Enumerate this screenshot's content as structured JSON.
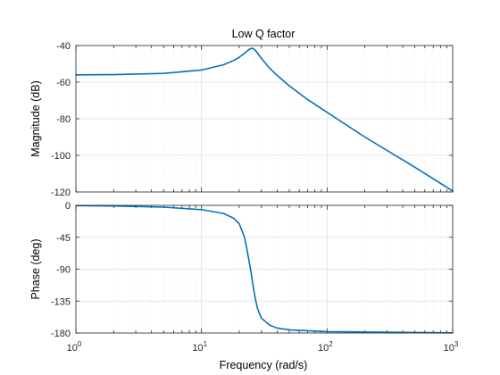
{
  "figure": {
    "title": "Low Q factor",
    "xlabel": "Frequency  (rad/s)"
  },
  "colors": {
    "line": "#0072BD",
    "axis": "#262626",
    "grid": "#dfdfdf",
    "minor_grid": "#e8e8e8",
    "background": "#ffffff"
  },
  "chart_data": [
    {
      "type": "line",
      "name": "magnitude",
      "title": "Low Q factor",
      "ylabel": "Magnitude (dB)",
      "xscale": "log",
      "xlim": [
        1,
        1000
      ],
      "ylim": [
        -120,
        -40
      ],
      "yticks": [
        -120,
        -100,
        -80,
        -60,
        -40
      ],
      "grid": true,
      "points": [
        [
          1,
          -56.0
        ],
        [
          2,
          -55.9
        ],
        [
          5,
          -55.2
        ],
        [
          10,
          -53.4
        ],
        [
          15,
          -50.5
        ],
        [
          18,
          -48.2
        ],
        [
          20,
          -46.4
        ],
        [
          22,
          -44.2
        ],
        [
          24,
          -42.1
        ],
        [
          25.5,
          -41.4
        ],
        [
          27,
          -42.8
        ],
        [
          30,
          -47.0
        ],
        [
          35,
          -52.5
        ],
        [
          40,
          -56.3
        ],
        [
          50,
          -62.0
        ],
        [
          70,
          -69.5
        ],
        [
          100,
          -76.5
        ],
        [
          200,
          -90.0
        ],
        [
          500,
          -106.5
        ],
        [
          1000,
          -119.5
        ]
      ]
    },
    {
      "type": "line",
      "name": "phase",
      "xlabel": "Frequency  (rad/s)",
      "ylabel": "Phase (deg)",
      "xscale": "log",
      "xlim": [
        1,
        1000
      ],
      "ylim": [
        -180,
        0
      ],
      "yticks": [
        -180,
        -135,
        -90,
        -45,
        0
      ],
      "xticks": [
        1,
        10,
        100,
        1000
      ],
      "xtick_labels": [
        {
          "base": "10",
          "exp": "0"
        },
        {
          "base": "10",
          "exp": "1"
        },
        {
          "base": "10",
          "exp": "2"
        },
        {
          "base": "10",
          "exp": "3"
        }
      ],
      "grid": true,
      "points": [
        [
          1,
          -0.4
        ],
        [
          2,
          -0.9
        ],
        [
          5,
          -2.5
        ],
        [
          10,
          -6.0
        ],
        [
          15,
          -11.5
        ],
        [
          18,
          -18.0
        ],
        [
          20,
          -26.0
        ],
        [
          22,
          -45.0
        ],
        [
          23,
          -62.0
        ],
        [
          24,
          -80.0
        ],
        [
          25,
          -98.0
        ],
        [
          26,
          -118.0
        ],
        [
          27,
          -134.0
        ],
        [
          28,
          -146.0
        ],
        [
          30,
          -159.0
        ],
        [
          35,
          -169.0
        ],
        [
          40,
          -173.0
        ],
        [
          50,
          -175.5
        ],
        [
          100,
          -178.0
        ],
        [
          1000,
          -179.8
        ]
      ]
    }
  ]
}
